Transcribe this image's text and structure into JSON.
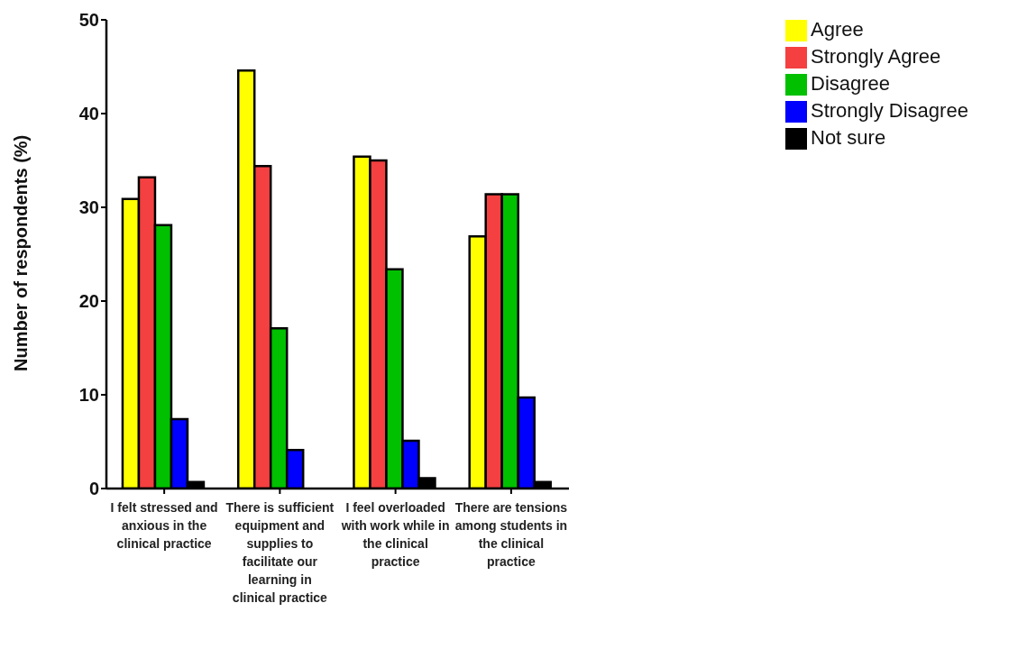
{
  "chart_data": {
    "type": "bar",
    "ylabel": "Number of respondents (%)",
    "categories": [
      "I felt stressed and anxious in the clinical practice",
      "There is sufficient equipment and supplies to facilitate our learning in clinical practice",
      "I feel overloaded with work while in the clinical practice",
      "There are tensions among students in the clinical practice"
    ],
    "series": [
      {
        "name": "Agree",
        "color": "#ffff00",
        "values": [
          30.9,
          44.6,
          35.4,
          26.9
        ]
      },
      {
        "name": "Strongly Agree",
        "color": "#f44040",
        "values": [
          33.2,
          34.4,
          35.0,
          31.4
        ]
      },
      {
        "name": "Disagree",
        "color": "#00c000",
        "values": [
          28.1,
          17.1,
          23.4,
          31.4
        ]
      },
      {
        "name": "Strongly Disagree",
        "color": "#0000ff",
        "values": [
          7.4,
          4.1,
          5.1,
          9.7
        ]
      },
      {
        "name": "Not sure",
        "color": "#000000",
        "values": [
          0.7,
          0,
          1.1,
          0.7
        ]
      }
    ],
    "ylim": [
      0,
      50
    ],
    "yticks": [
      0,
      10,
      20,
      30,
      40,
      50
    ],
    "grid": false,
    "legend": "top right"
  }
}
